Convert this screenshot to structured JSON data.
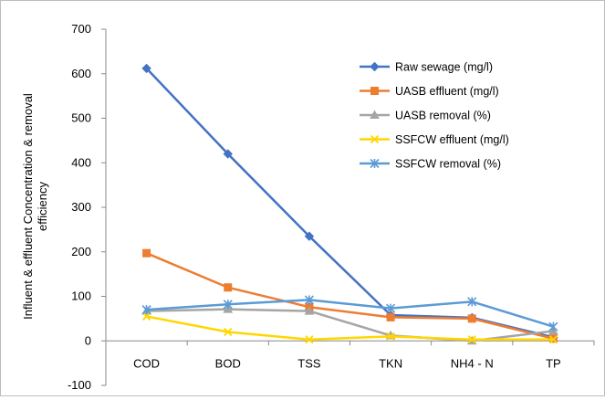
{
  "chart_data": {
    "type": "line",
    "title": "",
    "ylabel_lines": [
      "Influent & effluent Concentration & removal",
      "efficiency"
    ],
    "xlabel": "",
    "categories": [
      "COD",
      "BOD",
      "TSS",
      "TKN",
      "NH4 - N",
      "TP"
    ],
    "ylim": [
      -100,
      700
    ],
    "yticks": [
      -100,
      0,
      100,
      200,
      300,
      400,
      500,
      600,
      700
    ],
    "grid": false,
    "legend_position": "top-right",
    "series": [
      {
        "name": "Raw sewage (mg/l)",
        "color": "#4472C4",
        "marker": "diamond",
        "values": [
          612,
          420,
          235,
          58,
          52,
          8
        ]
      },
      {
        "name": "UASB effluent  (mg/l)",
        "color": "#ED7D31",
        "marker": "square",
        "values": [
          197,
          120,
          76,
          53,
          50,
          5
        ]
      },
      {
        "name": "UASB removal (%)",
        "color": "#A5A5A5",
        "marker": "triangle",
        "values": [
          67,
          71,
          67,
          12,
          0,
          22
        ]
      },
      {
        "name": "SSFCW effluent (mg/l)",
        "color": "#FFD700",
        "marker": "x",
        "values": [
          55,
          20,
          3,
          10,
          3,
          3
        ]
      },
      {
        "name": "SSFCW removal (%)",
        "color": "#5B9BD5",
        "marker": "star",
        "values": [
          70,
          82,
          92,
          73,
          88,
          32
        ]
      }
    ]
  }
}
